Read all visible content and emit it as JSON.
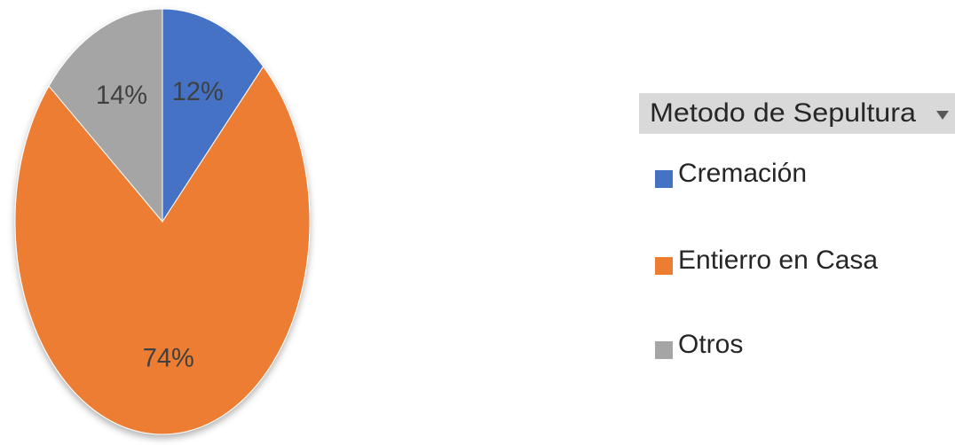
{
  "chart_data": {
    "type": "pie",
    "legend_title": "Metodo de Sepultura",
    "categories": [
      "Cremación",
      "Entierro en Casa",
      "Otros"
    ],
    "values": [
      12,
      74,
      14
    ],
    "value_labels": [
      "12%",
      "74%",
      "14%"
    ],
    "colors": [
      "#4472c4",
      "#ed7d31",
      "#a5a5a5"
    ],
    "legend": "right"
  }
}
